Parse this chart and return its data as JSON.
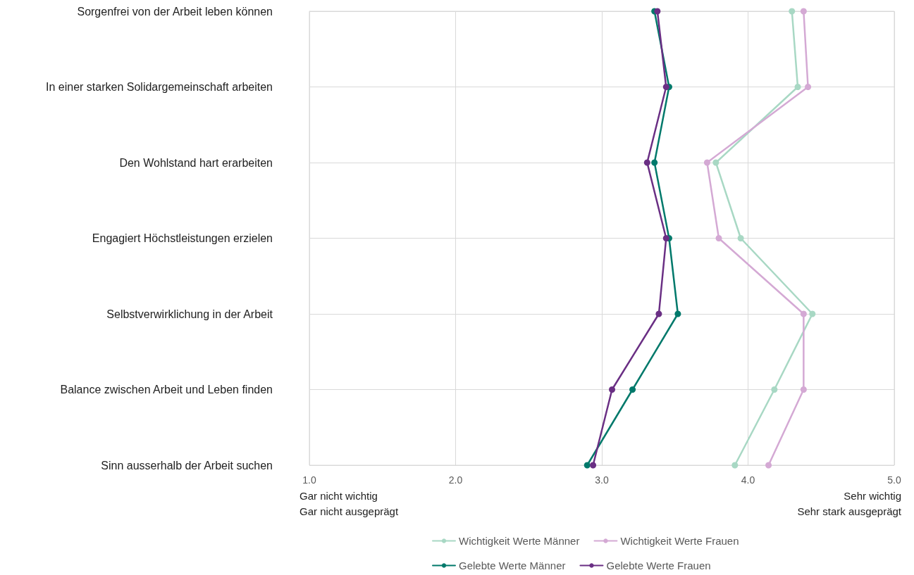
{
  "chart_data": {
    "type": "line",
    "orientation": "horizontal",
    "categories": [
      "Sorgenfrei von der Arbeit leben können",
      "In einer starken Solidargemeinschaft arbeiten",
      "Den Wohlstand hart erarbeiten",
      "Engagiert Höchstleistungen erzielen",
      "Selbstverwirklichung in der Arbeit",
      "Balance zwischen Arbeit und Leben finden",
      "Sinn ausserhalb der Arbeit suchen"
    ],
    "series": [
      {
        "name": "Wichtigkeit Werte Männer",
        "color": "#a8d8c4",
        "values": [
          4.3,
          4.34,
          3.78,
          3.95,
          4.44,
          4.18,
          3.91
        ]
      },
      {
        "name": "Wichtigkeit Werte Frauen",
        "color": "#d4a9d4",
        "values": [
          4.38,
          4.41,
          3.72,
          3.8,
          4.38,
          4.38,
          4.14
        ]
      },
      {
        "name": "Gelebte Werte Männer",
        "color": "#00796b",
        "values": [
          3.36,
          3.46,
          3.36,
          3.46,
          3.52,
          3.21,
          2.9
        ]
      },
      {
        "name": "Gelebte Werte Frauen",
        "color": "#6a2f84",
        "values": [
          3.38,
          3.44,
          3.31,
          3.44,
          3.39,
          3.07,
          2.94
        ]
      }
    ],
    "xlim": [
      1,
      5
    ],
    "xticks": [
      {
        "value": 1,
        "label": "1.0"
      },
      {
        "value": 2,
        "label": "2.0"
      },
      {
        "value": 3,
        "label": "3.0"
      },
      {
        "value": 4,
        "label": "4.0"
      },
      {
        "value": 5,
        "label": "5.0"
      }
    ],
    "annotations": [
      "Gar nicht wichtig",
      "Gar nicht ausgeprägt",
      "Sehr wichtig",
      "Sehr stark ausgeprägt"
    ],
    "grid": true,
    "legend": "bottom",
    "marker": "circle",
    "line_style": "solid"
  }
}
